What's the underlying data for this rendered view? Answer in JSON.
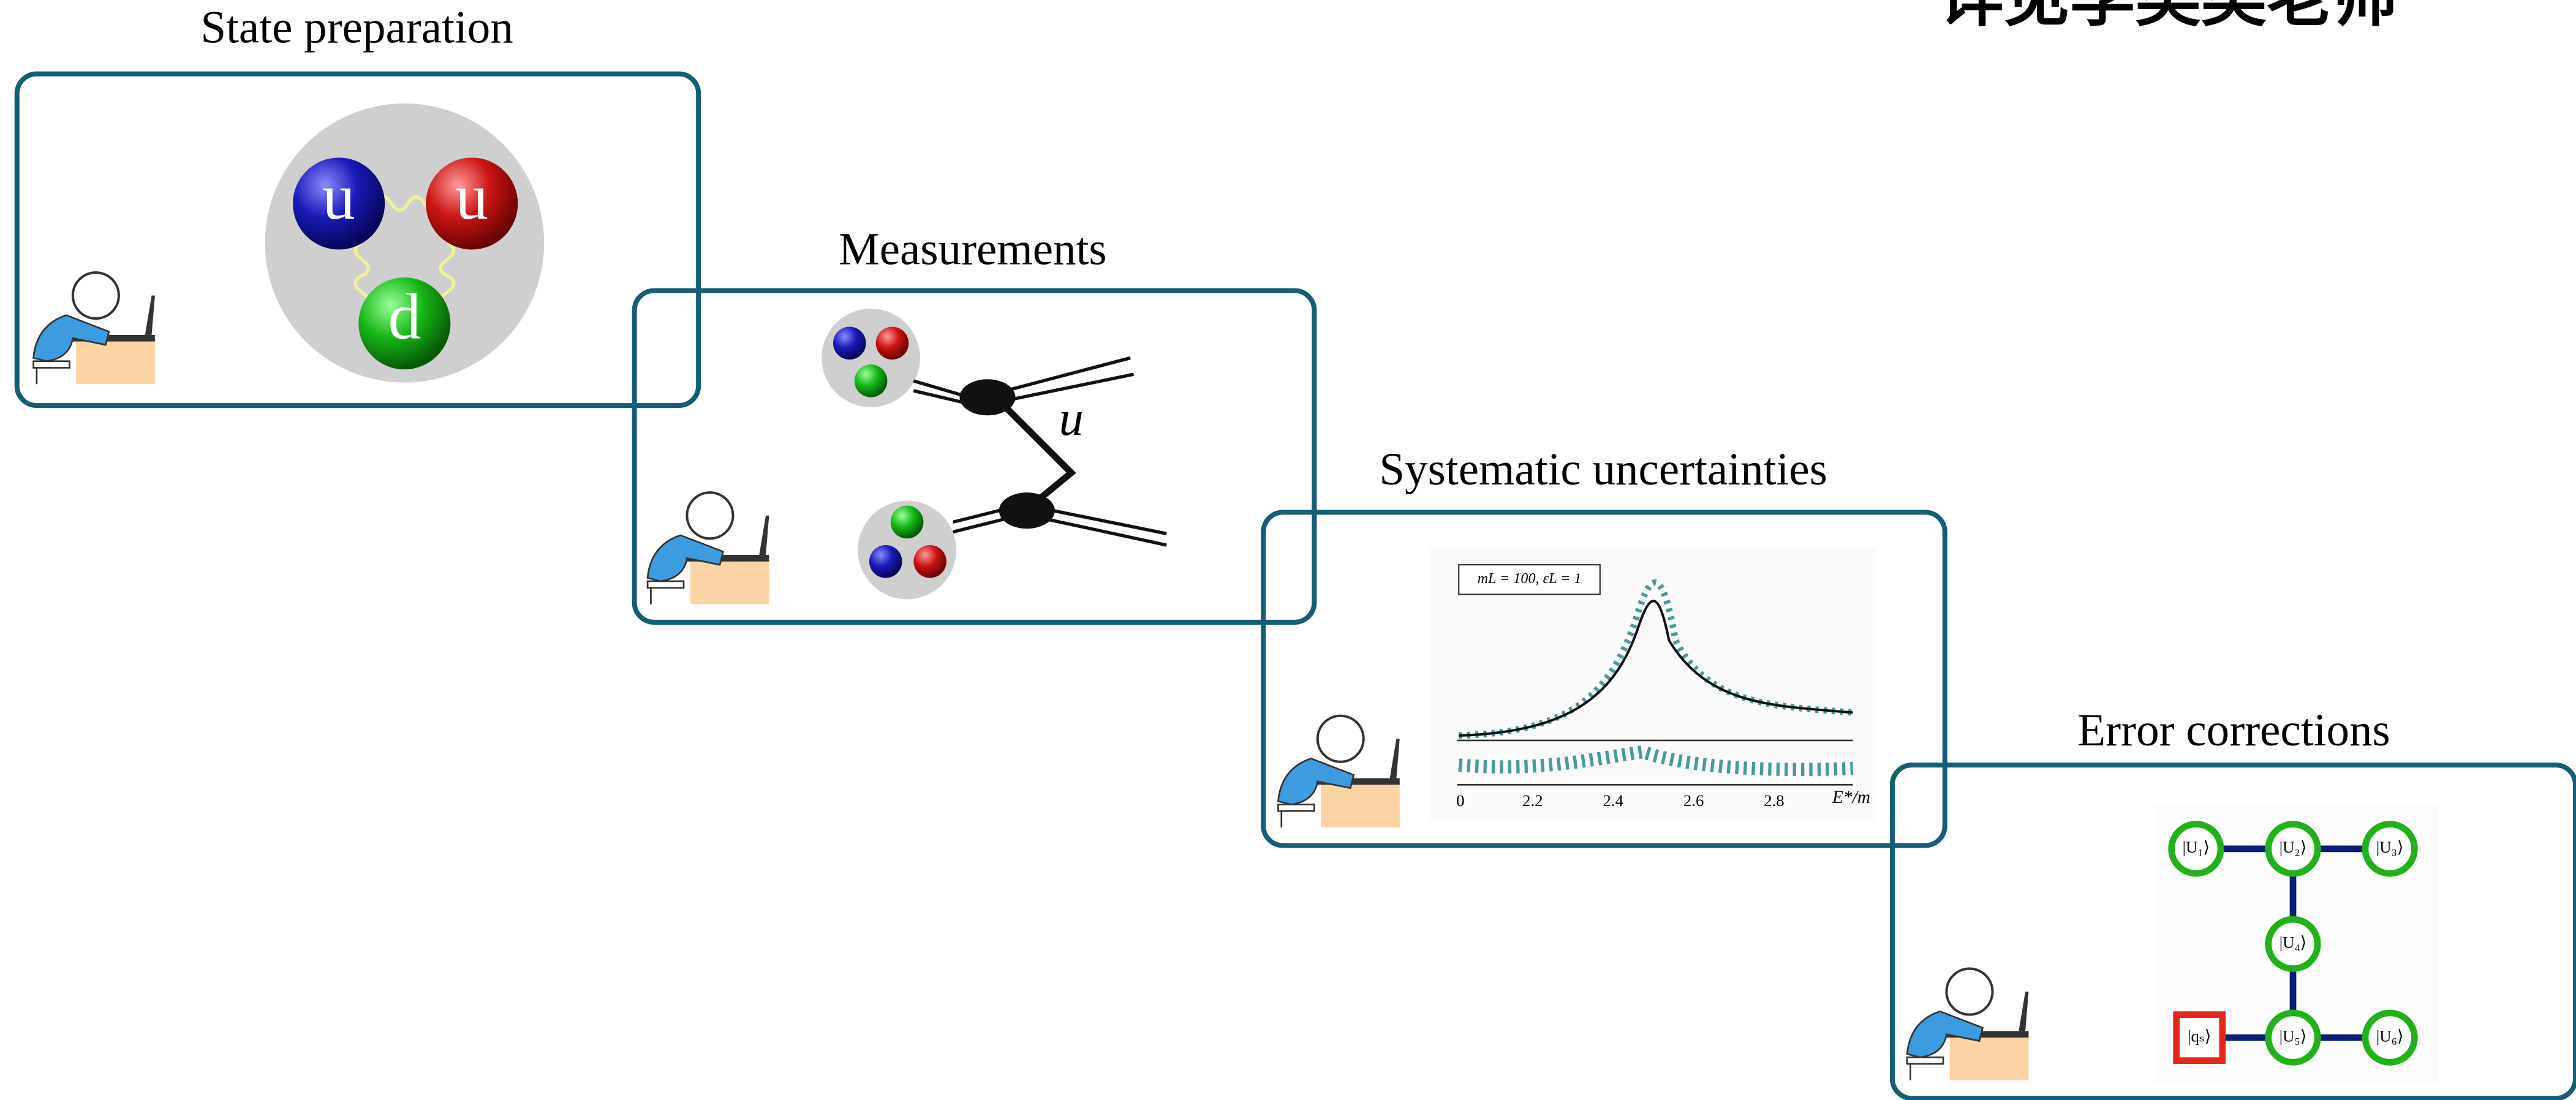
{
  "header": {
    "title": "详见李奕奕老师"
  },
  "panels": [
    {
      "title": "State preparation",
      "quarks": [
        "u",
        "u",
        "d"
      ]
    },
    {
      "title": "Measurements",
      "label": "u"
    },
    {
      "title": "Systematic uncertainties",
      "legend": "mL = 100, εL = 1",
      "xticks": [
        "0",
        "2.2",
        "2.4",
        "2.6",
        "2.8"
      ],
      "xlabel": "E*/m"
    },
    {
      "title": "Error corrections",
      "nodes": [
        "|U₁⟩",
        "|U₂⟩",
        "|U₃⟩",
        "|U₄⟩",
        "|U₅⟩",
        "|U₆⟩",
        "|qₛ⟩"
      ]
    }
  ]
}
